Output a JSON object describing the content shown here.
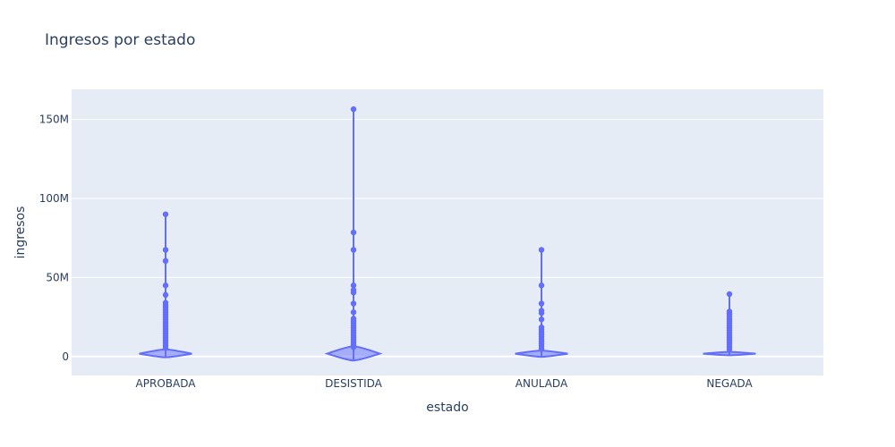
{
  "chart_data": {
    "type": "violin",
    "title": "Ingresos por estado",
    "xlabel": "estado",
    "ylabel": "ingresos",
    "categories": [
      "APROBADA",
      "DESISTIDA",
      "ANULADA",
      "NEGADA"
    ],
    "ylim": [
      -12000000,
      169000000
    ],
    "yticks": [
      {
        "value": 0,
        "label": "0"
      },
      {
        "value": 50000000,
        "label": "50M"
      },
      {
        "value": 100000000,
        "label": "100M"
      },
      {
        "value": 150000000,
        "label": "150M"
      }
    ],
    "grid": true,
    "color": "#636efa",
    "plot_background": "#e5ecf6",
    "violins": [
      {
        "category": "APROBADA",
        "min": -500000,
        "max": 90000000,
        "median": 1800000,
        "outliers": [
          90000000,
          67500000,
          60500000,
          45000000,
          39000000,
          34000000,
          32500000,
          31000000,
          29500000,
          28000000,
          26500000,
          25000000,
          23500000,
          22000000,
          20500000,
          19000000,
          17500000,
          16000000,
          14500000,
          13000000,
          11500000,
          10000000,
          8500000,
          7000000,
          5500000
        ]
      },
      {
        "category": "DESISTIDA",
        "min": -2500000,
        "max": 157000000,
        "median": 1800000,
        "outliers": [
          156500000,
          78500000,
          67500000,
          45000000,
          42000000,
          40500000,
          33500000,
          28000000,
          24000000,
          22500000,
          21000000,
          19500000,
          18000000,
          16500000,
          15000000,
          13500000,
          12000000,
          10500000,
          9000000,
          7500000,
          6000000
        ]
      },
      {
        "category": "ANULADA",
        "min": -200000,
        "max": 67500000,
        "median": 1800000,
        "outliers": [
          67500000,
          45000000,
          33500000,
          29000000,
          27500000,
          23500000,
          18500000,
          17000000,
          15500000,
          14000000,
          12500000,
          11000000,
          9500000,
          8000000,
          6500000,
          5000000
        ]
      },
      {
        "category": "NEGADA",
        "min": 800000,
        "max": 39500000,
        "median": 1800000,
        "outliers": [
          39500000,
          28500000,
          27000000,
          25500000,
          24000000,
          22500000,
          21000000,
          19500000,
          18000000,
          16500000,
          15000000,
          13500000,
          12000000,
          10500000,
          9000000,
          7500000,
          6000000,
          4500000
        ]
      }
    ]
  }
}
